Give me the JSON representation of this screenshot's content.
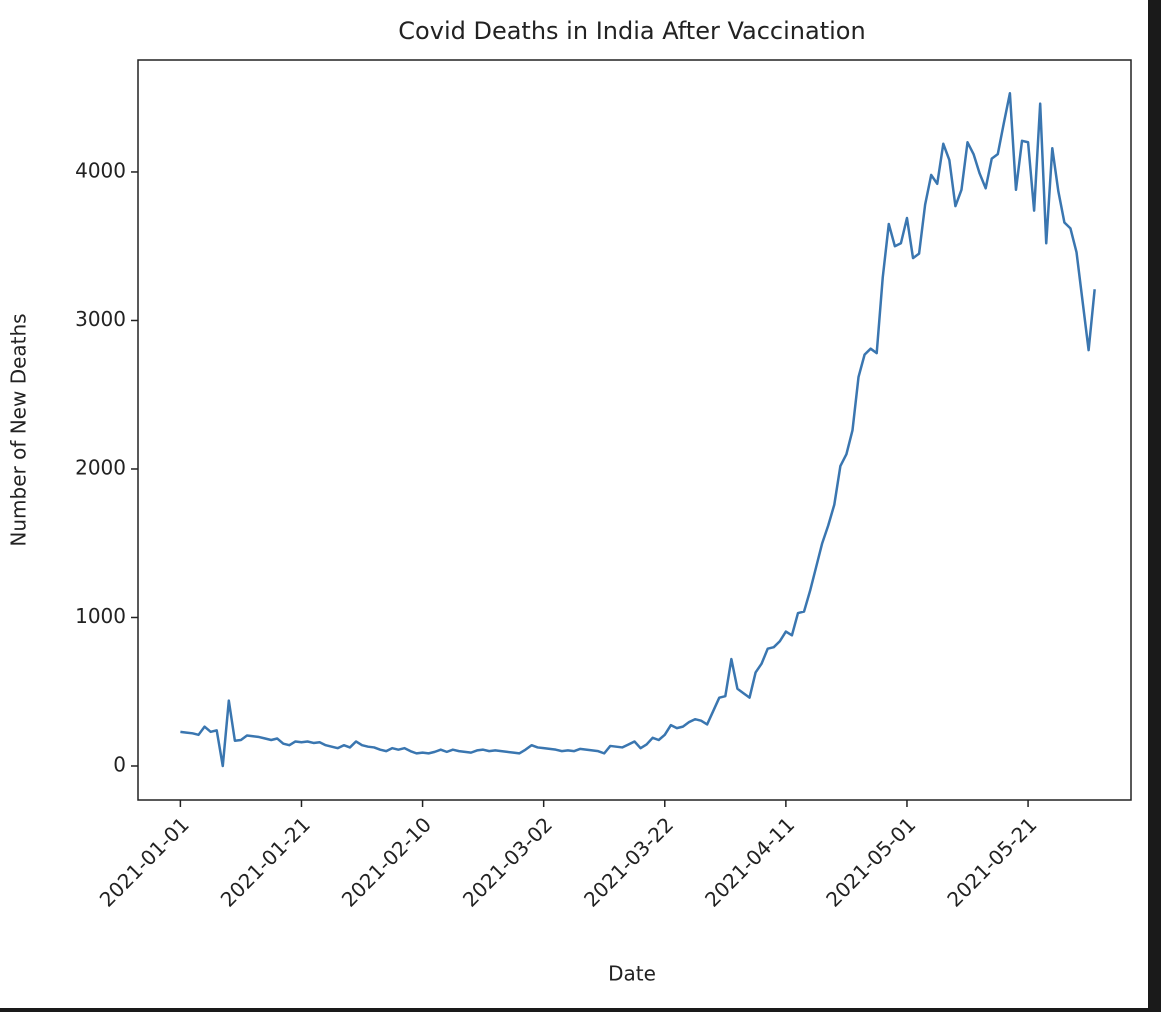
{
  "chart_data": {
    "type": "line",
    "title": "Covid Deaths in India After Vaccination",
    "x_label": "Date",
    "y_label": "Number of New Deaths",
    "color": "#3a76b0",
    "x": [
      "2021-01-01",
      "2021-01-02",
      "2021-01-03",
      "2021-01-04",
      "2021-01-05",
      "2021-01-06",
      "2021-01-07",
      "2021-01-08",
      "2021-01-09",
      "2021-01-10",
      "2021-01-11",
      "2021-01-12",
      "2021-01-13",
      "2021-01-14",
      "2021-01-15",
      "2021-01-16",
      "2021-01-17",
      "2021-01-18",
      "2021-01-19",
      "2021-01-20",
      "2021-01-21",
      "2021-01-22",
      "2021-01-23",
      "2021-01-24",
      "2021-01-25",
      "2021-01-26",
      "2021-01-27",
      "2021-01-28",
      "2021-01-29",
      "2021-01-30",
      "2021-01-31",
      "2021-02-01",
      "2021-02-02",
      "2021-02-03",
      "2021-02-04",
      "2021-02-05",
      "2021-02-06",
      "2021-02-07",
      "2021-02-08",
      "2021-02-09",
      "2021-02-10",
      "2021-02-11",
      "2021-02-12",
      "2021-02-13",
      "2021-02-14",
      "2021-02-15",
      "2021-02-16",
      "2021-02-17",
      "2021-02-18",
      "2021-02-19",
      "2021-02-20",
      "2021-02-21",
      "2021-02-22",
      "2021-02-23",
      "2021-02-24",
      "2021-02-25",
      "2021-02-26",
      "2021-02-27",
      "2021-02-28",
      "2021-03-01",
      "2021-03-02",
      "2021-03-03",
      "2021-03-04",
      "2021-03-05",
      "2021-03-06",
      "2021-03-07",
      "2021-03-08",
      "2021-03-09",
      "2021-03-10",
      "2021-03-11",
      "2021-03-12",
      "2021-03-13",
      "2021-03-14",
      "2021-03-15",
      "2021-03-16",
      "2021-03-17",
      "2021-03-18",
      "2021-03-19",
      "2021-03-20",
      "2021-03-21",
      "2021-03-22",
      "2021-03-23",
      "2021-03-24",
      "2021-03-25",
      "2021-03-26",
      "2021-03-27",
      "2021-03-28",
      "2021-03-29",
      "2021-03-30",
      "2021-03-31",
      "2021-04-01",
      "2021-04-02",
      "2021-04-03",
      "2021-04-04",
      "2021-04-05",
      "2021-04-06",
      "2021-04-07",
      "2021-04-08",
      "2021-04-09",
      "2021-04-10",
      "2021-04-11",
      "2021-04-12",
      "2021-04-13",
      "2021-04-14",
      "2021-04-15",
      "2021-04-16",
      "2021-04-17",
      "2021-04-18",
      "2021-04-19",
      "2021-04-20",
      "2021-04-21",
      "2021-04-22",
      "2021-04-23",
      "2021-04-24",
      "2021-04-25",
      "2021-04-26",
      "2021-04-27",
      "2021-04-28",
      "2021-04-29",
      "2021-04-30",
      "2021-05-01",
      "2021-05-02",
      "2021-05-03",
      "2021-05-04",
      "2021-05-05",
      "2021-05-06",
      "2021-05-07",
      "2021-05-08",
      "2021-05-09",
      "2021-05-10",
      "2021-05-11",
      "2021-05-12",
      "2021-05-13",
      "2021-05-14",
      "2021-05-15",
      "2021-05-16",
      "2021-05-17",
      "2021-05-18",
      "2021-05-19",
      "2021-05-20",
      "2021-05-21",
      "2021-05-22",
      "2021-05-23",
      "2021-05-24",
      "2021-05-25",
      "2021-05-26",
      "2021-05-27",
      "2021-05-28",
      "2021-05-29",
      "2021-05-30",
      "2021-05-31",
      "2021-06-01"
    ],
    "values": [
      230,
      225,
      220,
      210,
      265,
      230,
      240,
      0,
      440,
      170,
      175,
      205,
      200,
      195,
      185,
      175,
      185,
      150,
      140,
      165,
      160,
      165,
      155,
      160,
      140,
      130,
      120,
      140,
      125,
      165,
      140,
      130,
      125,
      110,
      100,
      120,
      110,
      120,
      100,
      85,
      90,
      85,
      95,
      110,
      95,
      110,
      100,
      95,
      90,
      105,
      110,
      100,
      105,
      100,
      95,
      90,
      85,
      110,
      140,
      125,
      120,
      115,
      110,
      100,
      105,
      100,
      115,
      110,
      105,
      100,
      85,
      135,
      130,
      125,
      145,
      165,
      120,
      145,
      190,
      175,
      210,
      275,
      255,
      265,
      295,
      315,
      305,
      280,
      370,
      460,
      470,
      720,
      520,
      490,
      460,
      630,
      690,
      790,
      800,
      840,
      905,
      880,
      1030,
      1040,
      1180,
      1340,
      1500,
      1620,
      1760,
      2020,
      2100,
      2260,
      2620,
      2770,
      2810,
      2780,
      3290,
      3650,
      3500,
      3520,
      3690,
      3420,
      3450,
      3780,
      3980,
      3920,
      4190,
      4080,
      3770,
      3880,
      4200,
      4120,
      3990,
      3890,
      4090,
      4120,
      4330,
      4530,
      3880,
      4210,
      4200,
      3740,
      4460,
      3520,
      4160,
      3870,
      3660,
      3620,
      3460,
      3130,
      2800,
      3210
    ],
    "xlim": [
      "2020-12-25",
      "2021-06-07"
    ],
    "xticks": [
      "2021-01-01",
      "2021-01-21",
      "2021-02-10",
      "2021-03-02",
      "2021-03-22",
      "2021-04-11",
      "2021-05-01",
      "2021-05-21"
    ],
    "ylim": [
      -229,
      4754
    ],
    "yticks": [
      0,
      1000,
      2000,
      3000,
      4000
    ],
    "grid": false
  }
}
